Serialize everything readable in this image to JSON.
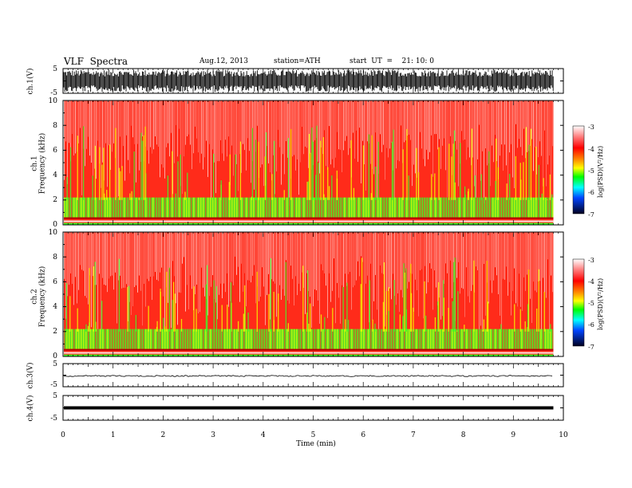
{
  "header": {
    "title": "VLF  Spectra",
    "date": "Aug.12, 2013",
    "station": "station=ATH",
    "start": "start  UT  =    21: 10: 0"
  },
  "chart_data": [
    {
      "type": "line",
      "panel": "ch1-waveform",
      "ylabel": "ch.1(V)",
      "ylim": [
        -5,
        5
      ],
      "yticks": [
        "5",
        "-5"
      ],
      "description_values": {
        "amplitude_range": [
          -4.5,
          4.5
        ]
      }
    },
    {
      "type": "heatmap",
      "panel": "ch1-spectrogram",
      "ylabel": "ch.1\nFrequency  (kHz)",
      "ylabel_line1": "ch.1",
      "ylabel_line2": "Frequency  (kHz)",
      "ylim": [
        0,
        10
      ],
      "yticks": [
        "0",
        "2",
        "4",
        "6",
        "8",
        "10"
      ],
      "colorbar": {
        "label": "log(PSD)(V²/Hz)",
        "ticks": [
          "-3",
          "-4",
          "-5",
          "-6",
          "-7"
        ],
        "range": [
          -7,
          -3
        ]
      }
    },
    {
      "type": "heatmap",
      "panel": "ch2-spectrogram",
      "ylabel_line1": "ch.2",
      "ylabel_line2": "Frequency  (kHz)",
      "ylim": [
        0,
        10
      ],
      "yticks": [
        "0",
        "2",
        "4",
        "6",
        "8",
        "10"
      ],
      "colorbar": {
        "label": "log(PSD)(V²/Hz)",
        "ticks": [
          "-3",
          "-4",
          "-5",
          "-6",
          "-7"
        ],
        "range": [
          -7,
          -3
        ]
      }
    },
    {
      "type": "line",
      "panel": "ch3-waveform",
      "ylabel": "ch.3(V)",
      "ylim": [
        -5,
        5
      ],
      "yticks": [
        "5",
        "-5"
      ],
      "level": 0
    },
    {
      "type": "line",
      "panel": "ch4-waveform",
      "ylabel": "ch.4(V)",
      "ylim": [
        -5,
        5
      ],
      "yticks": [
        "5",
        "-5"
      ],
      "level": 0
    }
  ],
  "xaxis": {
    "label": "Time  (min)",
    "range": [
      0,
      10
    ],
    "ticks": [
      "0",
      "1",
      "2",
      "3",
      "4",
      "5",
      "6",
      "7",
      "8",
      "9",
      "10"
    ],
    "data_end": 9.8
  },
  "colors": {
    "background_red": "#ff2b1a",
    "noise_white": "#ffffff",
    "band_green": "#3cff28",
    "band_yellow": "#f5ff00",
    "line_black": "#000000"
  }
}
